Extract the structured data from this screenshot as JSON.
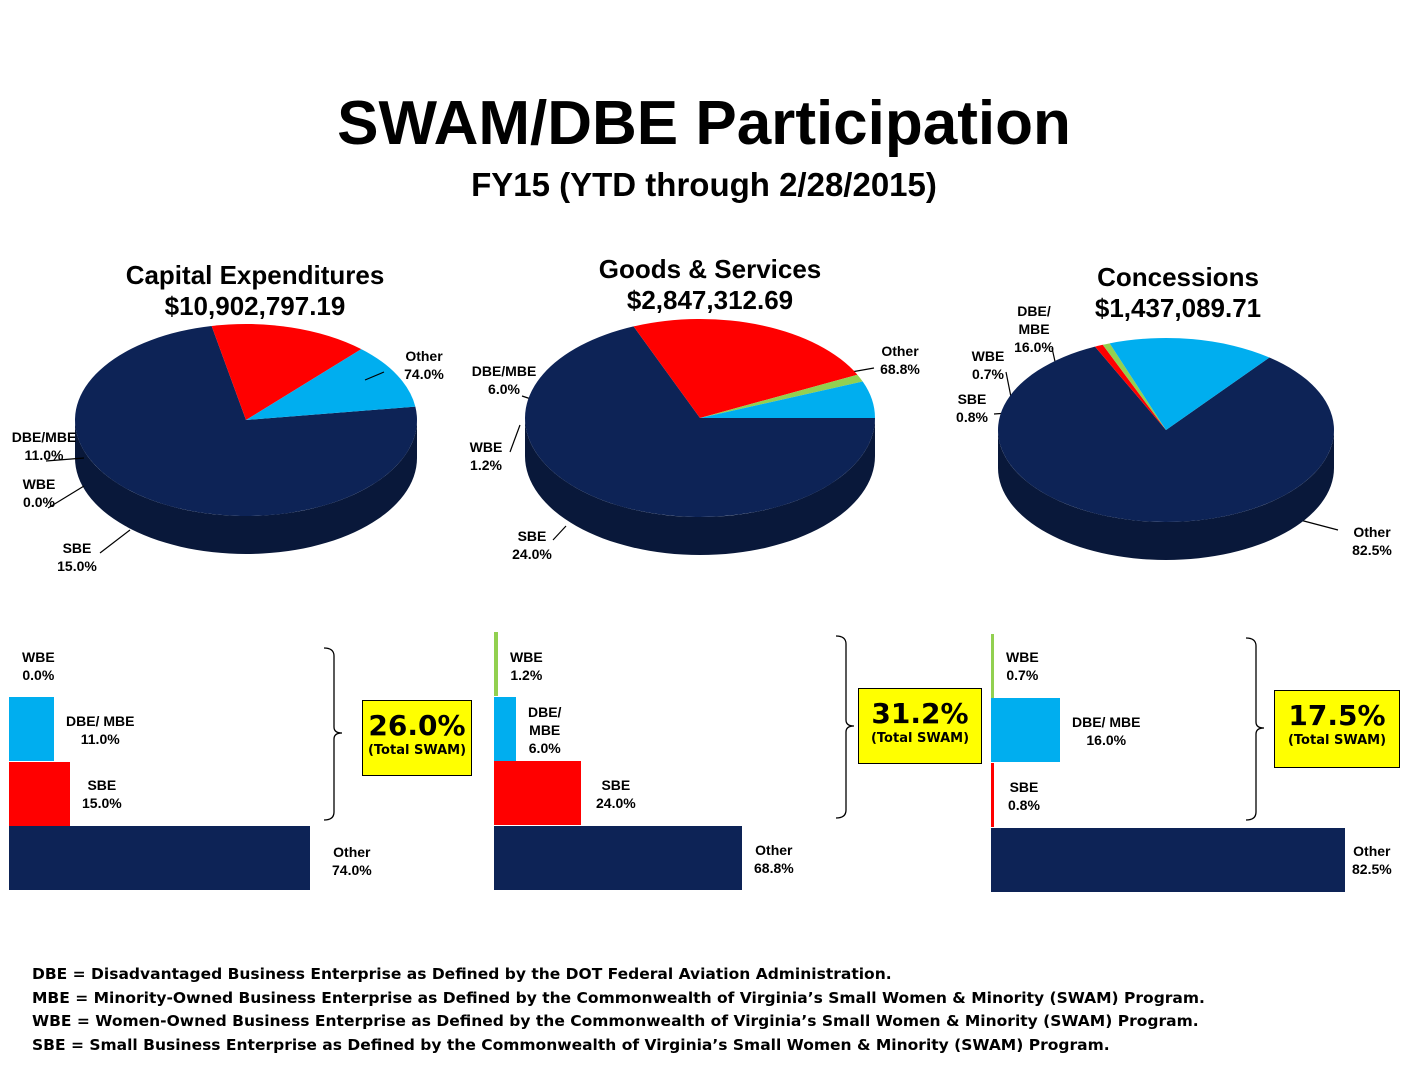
{
  "title": "SWAM/DBE Participation",
  "subtitle": "FY15 (YTD through 2/28/2015)",
  "colors": {
    "other": "#0d2356",
    "dbe": "#00aeef",
    "sbe": "#ff0000",
    "wbe": "#92d050",
    "highlight": "#ffff00"
  },
  "chart_data": [
    {
      "type": "pie",
      "title": "Capital Expenditures",
      "subtitle": "$10,902,797.19",
      "labels": [
        "Other",
        "DBE/MBE",
        "WBE",
        "SBE"
      ],
      "values": [
        74.0,
        11.0,
        0.0,
        15.0
      ],
      "value_labels": [
        "74.0%",
        "11.0%",
        "0.0%",
        "15.0%"
      ],
      "bar_labels": [
        "Other",
        "DBE/ MBE",
        "WBE",
        "SBE"
      ],
      "total_swam": "26.0%",
      "total_swam_label": "(Total SWAM)"
    },
    {
      "type": "pie",
      "title": "Goods & Services",
      "subtitle": "$2,847,312.69",
      "labels": [
        "Other",
        "DBE/MBE",
        "WBE",
        "SBE"
      ],
      "values": [
        68.8,
        6.0,
        1.2,
        24.0
      ],
      "value_labels": [
        "68.8%",
        "6.0%",
        "1.2%",
        "24.0%"
      ],
      "bar_labels": [
        "Other",
        "DBE/ MBE",
        "WBE",
        "SBE"
      ],
      "total_swam": "31.2%",
      "total_swam_label": "(Total SWAM)"
    },
    {
      "type": "pie",
      "title": "Concessions",
      "subtitle": "$1,437,089.71",
      "labels": [
        "Other",
        "DBE/ MBE",
        "WBE",
        "SBE"
      ],
      "values": [
        82.5,
        16.0,
        0.7,
        0.8
      ],
      "value_labels": [
        "82.5%",
        "16.0%",
        "0.7%",
        "0.8%"
      ],
      "bar_labels": [
        "Other",
        "DBE/ MBE",
        "WBE",
        "SBE"
      ],
      "total_swam": "17.5%",
      "total_swam_label": "(Total SWAM)"
    }
  ],
  "footnotes": [
    "DBE = Disadvantaged Business Enterprise as Defined by the DOT Federal Aviation Administration.",
    "MBE = Minority-Owned Business Enterprise as Defined by the Commonwealth of Virginia’s Small Women & Minority (SWAM) Program.",
    "WBE = Women-Owned Business Enterprise as Defined by the Commonwealth of Virginia’s Small Women & Minority (SWAM) Program.",
    "SBE = Small Business Enterprise as Defined by the Commonwealth of Virginia’s Small Women & Minority (SWAM) Program."
  ]
}
